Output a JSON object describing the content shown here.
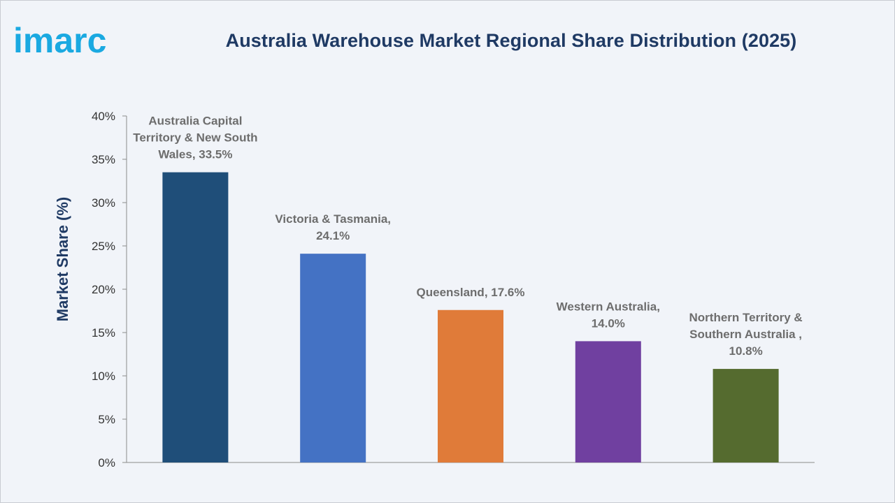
{
  "brand": {
    "logo_text": "imarc",
    "logo_color": "#1aa9e1"
  },
  "chart_data": {
    "type": "bar",
    "title": "Australia Warehouse Market Regional Share Distribution (2025)",
    "ylabel": "Market Share (%)",
    "xlabel": "",
    "ylim": [
      0,
      40
    ],
    "yticks": [
      0,
      5,
      10,
      15,
      20,
      25,
      30,
      35,
      40
    ],
    "ytick_labels": [
      "0%",
      "5%",
      "10%",
      "15%",
      "20%",
      "25%",
      "30%",
      "35%",
      "40%"
    ],
    "grid": false,
    "legend": "none",
    "categories": [
      "Australia Capital Territory & New South Wales",
      "Victoria & Tasmania",
      "Queensland",
      "Western Australia",
      "Northern Territory & Southern Australia"
    ],
    "values": [
      33.5,
      24.1,
      17.6,
      14.0,
      10.8
    ],
    "data_labels": [
      [
        "Australia Capital",
        "Territory & New South",
        "Wales, 33.5%"
      ],
      [
        "Victoria & Tasmania,",
        "24.1%"
      ],
      [
        "Queensland, 17.6%"
      ],
      [
        "Western Australia,",
        "14.0%"
      ],
      [
        "Northern Territory &",
        "Southern Australia ,",
        "10.8%"
      ]
    ],
    "colors": [
      "#1f4e79",
      "#4472c4",
      "#e07b39",
      "#7040a0",
      "#556b2f"
    ]
  }
}
